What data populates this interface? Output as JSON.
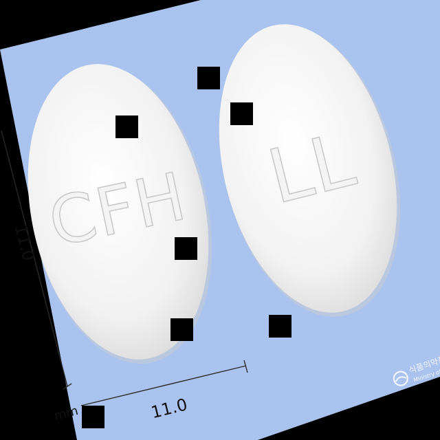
{
  "pill_left": {
    "imprint": "CFH"
  },
  "pill_right": {
    "imprint": "LL"
  },
  "dimensions": {
    "length": "11.0",
    "width": "11.0",
    "unit": "mm"
  },
  "watermark": {
    "korean": "식품의약품",
    "english": "Ministry of Foo"
  },
  "colors": {
    "background": "#a9c3ee",
    "pill": "#f2f2f2",
    "border": "#000000"
  }
}
